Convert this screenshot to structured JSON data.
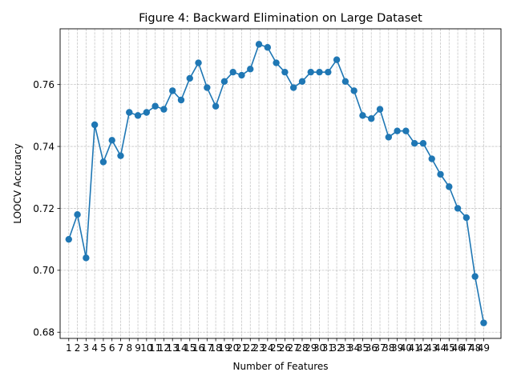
{
  "chart_data": {
    "type": "line",
    "title": "Figure 4: Backward Elimination on Large Dataset",
    "xlabel": "Number of Features",
    "ylabel": "LOOCV Accuracy",
    "grid": true,
    "xlim": [
      -1,
      50
    ],
    "ylim": [
      0.678,
      0.778
    ],
    "yticks": [
      0.68,
      0.7,
      0.72,
      0.74,
      0.76
    ],
    "ytick_labels": [
      "0.68",
      "0.70",
      "0.72",
      "0.74",
      "0.76"
    ],
    "categories": [
      "1",
      "2",
      "3",
      "4",
      "5",
      "6",
      "7",
      "8",
      "9",
      "10",
      "11",
      "12",
      "13",
      "14",
      "15",
      "16",
      "17",
      "18",
      "19",
      "20",
      "21",
      "22",
      "23",
      "24",
      "25",
      "26",
      "27",
      "28",
      "29",
      "30",
      "31",
      "32",
      "33",
      "34",
      "35",
      "36",
      "37",
      "38",
      "39",
      "40",
      "41",
      "42",
      "43",
      "44",
      "45",
      "46",
      "47",
      "48",
      "49"
    ],
    "series": [
      {
        "name": "LOOCV Accuracy",
        "color": "#1f77b4",
        "values": [
          0.71,
          0.718,
          0.704,
          0.747,
          0.735,
          0.742,
          0.737,
          0.751,
          0.75,
          0.751,
          0.753,
          0.752,
          0.758,
          0.755,
          0.762,
          0.767,
          0.759,
          0.753,
          0.761,
          0.764,
          0.763,
          0.765,
          0.773,
          0.772,
          0.767,
          0.764,
          0.759,
          0.761,
          0.764,
          0.764,
          0.764,
          0.768,
          0.761,
          0.758,
          0.75,
          0.749,
          0.752,
          0.743,
          0.745,
          0.745,
          0.741,
          0.741,
          0.736,
          0.731,
          0.727,
          0.72,
          0.717,
          0.698,
          0.683
        ]
      }
    ]
  }
}
